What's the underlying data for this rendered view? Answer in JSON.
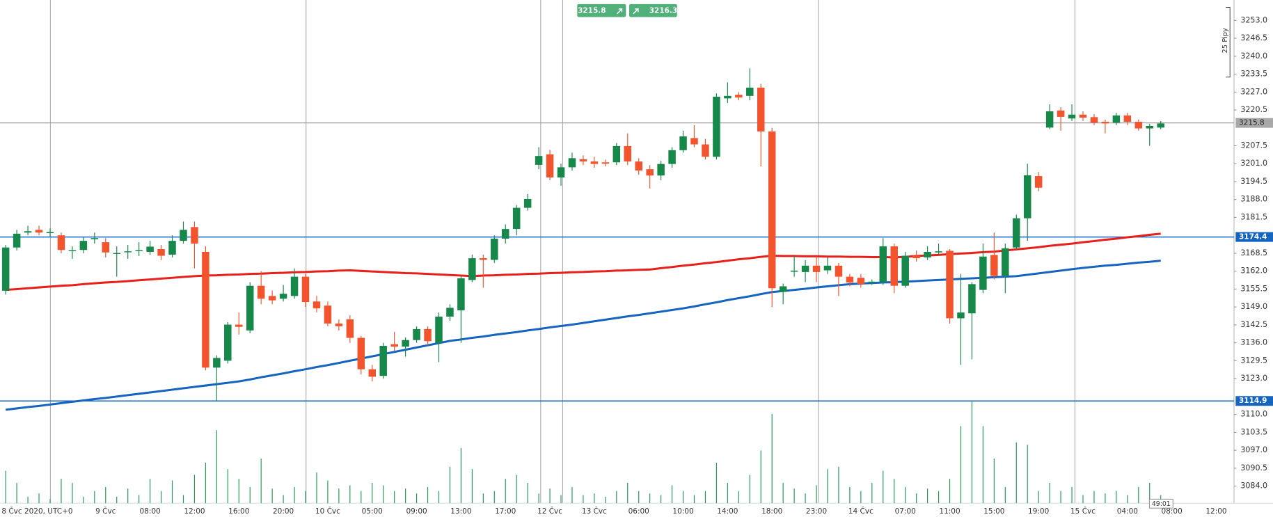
{
  "chart_data": {
    "type": "candlestick",
    "categories": [
      "8 Čvc 2020, UTC+0",
      null,
      null,
      null,
      null,
      null,
      null,
      null,
      null,
      "9 Čvc",
      null,
      null,
      null,
      "08:00",
      null,
      null,
      null,
      "12:00",
      null,
      null,
      null,
      "16:00",
      null,
      null,
      null,
      "20:00",
      null,
      null,
      null,
      "10 Čvc",
      null,
      null,
      null,
      "05:00",
      null,
      null,
      null,
      "09:00",
      null,
      null,
      null,
      "13:00",
      null,
      null,
      null,
      "17:00",
      null,
      null,
      null,
      "12 Čvc",
      null,
      null,
      null,
      "13 Čvc",
      null,
      null,
      null,
      "06:00",
      null,
      null,
      null,
      "10:00",
      null,
      null,
      null,
      "14:00",
      null,
      null,
      null,
      "18:00",
      null,
      null,
      null,
      "23:00",
      null,
      null,
      null,
      "14 Čvc",
      null,
      null,
      null,
      "07:00",
      null,
      null,
      null,
      "11:00",
      null,
      null,
      null,
      "15:00",
      null,
      null,
      null,
      "19:00",
      null,
      null,
      null,
      "15 Čvc",
      null,
      null,
      null,
      "04:00",
      null,
      null,
      null,
      "08:00",
      null,
      null,
      null,
      "12:00"
    ],
    "open": [
      3154.9,
      3170.6,
      3176.0,
      3177.0,
      3175.8,
      3175.0,
      3169.3,
      3169.7,
      3173.6,
      3172.5,
      3168.3,
      3168.9,
      3169.3,
      3169.0,
      3170.0,
      3168.0,
      3173.0,
      3178.0,
      3169.0,
      3127.0,
      3129.5,
      3142.6,
      3140.5,
      3156.7,
      3153.0,
      3152.0,
      3153.0,
      3160.0,
      3151.0,
      3149.5,
      3143.0,
      3144.5,
      3137.8,
      3126.4,
      3124.0,
      3135.5,
      3134.6,
      3137.0,
      3141.0,
      3136.0,
      3145.5,
      3147.8,
      3158.8,
      3166.7,
      3166.1,
      3173.8,
      3177.3,
      3185.0,
      3200.6,
      3204.4,
      3196.0,
      3199.7,
      3202.6,
      3201.8,
      3201.5,
      3201.5,
      3207.4,
      3201.8,
      3199.0,
      3196.7,
      3200.9,
      3205.9,
      3210.3,
      3208.0,
      3203.5,
      3224.7,
      3226.0,
      3225.6,
      3228.6,
      3212.7,
      3154.5,
      3161.8,
      3161.7,
      3164.0,
      3162.3,
      3164.0,
      3160.0,
      3159.6,
      3157.8,
      3158.0,
      3171.0,
      3156.7,
      3167.6,
      3167.0,
      3168.8,
      3169.4,
      3144.9,
      3146.7,
      3155.2,
      3167.9,
      3160.3,
      3170.6,
      3181.2,
      3196.5,
      3214.1,
      3220.3,
      3217.4,
      3218.8,
      3217.9,
      3216.2,
      3215.9,
      3218.5,
      3216.2,
      3213.8,
      3214.1,
      null,
      null,
      null,
      null,
      null
    ],
    "high": [
      3171.5,
      3177.0,
      3178.5,
      3178.5,
      3177.5,
      3176.0,
      3171.0,
      3174.5,
      3176.0,
      3174.0,
      3171.0,
      3171.5,
      3172.5,
      3173.0,
      3171.5,
      3175.0,
      3180.0,
      3180.0,
      3171.0,
      3131.5,
      3143.5,
      3147.0,
      3158.0,
      3162.0,
      3155.0,
      3157.0,
      3163.0,
      3161.0,
      3153.0,
      3151.0,
      3144.5,
      3146.0,
      3138.5,
      3128.0,
      3136.0,
      3140.0,
      3138.0,
      3142.0,
      3142.0,
      3147.0,
      3150.0,
      3160.5,
      3168.0,
      3168.0,
      3175.0,
      3179.0,
      3186.0,
      3190.0,
      3207.0,
      3206.0,
      3201.0,
      3205.0,
      3204.0,
      3203.5,
      3202.5,
      3208.5,
      3212.0,
      3203.0,
      3200.5,
      3202.0,
      3207.0,
      3213.0,
      3215.0,
      3210.0,
      3226.5,
      3230.5,
      3227.0,
      3235.6,
      3230.0,
      3214.0,
      3157.5,
      3167.5,
      3166.0,
      3167.0,
      3167.0,
      3165.0,
      3161.0,
      3161.0,
      3159.0,
      3174.0,
      3172.0,
      3169.0,
      3169.5,
      3171.0,
      3172.0,
      3170.0,
      3161.0,
      3158.0,
      3172.0,
      3176.0,
      3172.0,
      3182.5,
      3201.0,
      3198.0,
      3222.5,
      3221.5,
      3222.5,
      3220.0,
      3219.0,
      3217.0,
      3219.5,
      3219.5,
      3217.0,
      3215.5,
      3216.5,
      null,
      null,
      null,
      null,
      null
    ],
    "low": [
      3153.5,
      3169.5,
      3175.0,
      3175.0,
      3174.5,
      3168.5,
      3166.5,
      3168.5,
      3172.0,
      3167.0,
      3160.0,
      3166.5,
      3167.5,
      3168.0,
      3166.0,
      3167.0,
      3172.0,
      3163.0,
      3126.0,
      3115.0,
      3128.5,
      3139.0,
      3139.5,
      3150.0,
      3150.0,
      3151.0,
      3152.0,
      3149.0,
      3147.0,
      3142.0,
      3140.5,
      3136.0,
      3124.5,
      3122.0,
      3123.0,
      3133.0,
      3131.0,
      3136.0,
      3135.0,
      3129.0,
      3144.0,
      3136.0,
      3158.0,
      3156.0,
      3165.0,
      3172.0,
      3175.0,
      3184.0,
      3199.0,
      3195.0,
      3193.0,
      3198.5,
      3200.5,
      3199.5,
      3200.0,
      3200.5,
      3200.5,
      3197.0,
      3192.0,
      3195.0,
      3199.5,
      3205.0,
      3207.0,
      3202.5,
      3202.5,
      3223.0,
      3224.0,
      3224.0,
      3200.0,
      3149.0,
      3150.0,
      3160.0,
      3158.0,
      3158.0,
      3161.0,
      3153.0,
      3156.5,
      3156.0,
      3157.0,
      3157.0,
      3154.0,
      3156.0,
      3165.5,
      3166.0,
      3168.0,
      3143.0,
      3128.0,
      3130.0,
      3154.0,
      3159.0,
      3154.0,
      3169.5,
      3173.0,
      3191.0,
      3213.5,
      3213.0,
      3216.5,
      3216.5,
      3215.0,
      3212.0,
      3215.0,
      3215.0,
      3213.0,
      3207.5,
      3213.5,
      null,
      null,
      null,
      null,
      null
    ],
    "close": [
      3170.6,
      3175.6,
      3176.5,
      3176.0,
      3176.2,
      3169.7,
      3169.6,
      3173.0,
      3174.0,
      3168.8,
      3168.6,
      3169.2,
      3169.6,
      3170.9,
      3167.6,
      3173.0,
      3177.0,
      3172.0,
      3127.0,
      3130.5,
      3142.6,
      3141.8,
      3156.7,
      3152.0,
      3151.4,
      3153.8,
      3160.0,
      3150.8,
      3148.5,
      3143.0,
      3142.0,
      3137.8,
      3126.4,
      3123.7,
      3134.9,
      3134.6,
      3137.0,
      3141.0,
      3136.6,
      3145.5,
      3148.7,
      3159.4,
      3166.7,
      3166.1,
      3173.8,
      3177.3,
      3185.0,
      3188.2,
      3203.8,
      3196.0,
      3199.7,
      3203.0,
      3201.8,
      3200.9,
      3201.0,
      3207.4,
      3201.8,
      3198.5,
      3196.7,
      3200.9,
      3205.9,
      3210.9,
      3208.0,
      3203.5,
      3225.3,
      3225.6,
      3225.0,
      3228.6,
      3212.7,
      3155.8,
      3156.5,
      3162.2,
      3164.0,
      3161.7,
      3164.0,
      3160.0,
      3157.9,
      3157.3,
      3158.2,
      3171.0,
      3156.7,
      3167.6,
      3166.7,
      3169.0,
      3169.2,
      3144.9,
      3147.0,
      3157.3,
      3167.3,
      3160.3,
      3170.3,
      3181.2,
      3196.8,
      3192.3,
      3220.0,
      3218.0,
      3218.8,
      3217.7,
      3215.9,
      3215.6,
      3218.5,
      3216.2,
      3213.8,
      3214.7,
      3215.6,
      null,
      null,
      null,
      null,
      null
    ],
    "volume": [
      40,
      25,
      8,
      12,
      5,
      30,
      25,
      8,
      15,
      20,
      8,
      18,
      10,
      30,
      15,
      28,
      10,
      35,
      50,
      90,
      42,
      30,
      20,
      55,
      18,
      10,
      20,
      15,
      38,
      28,
      18,
      22,
      15,
      25,
      22,
      15,
      18,
      12,
      20,
      15,
      45,
      68,
      42,
      12,
      15,
      30,
      35,
      25,
      12,
      18,
      10,
      20,
      10,
      12,
      8,
      15,
      25,
      15,
      12,
      10,
      22,
      15,
      10,
      15,
      50,
      25,
      15,
      35,
      65,
      110,
      25,
      18,
      12,
      22,
      42,
      45,
      20,
      15,
      25,
      40,
      30,
      20,
      12,
      18,
      15,
      30,
      95,
      125,
      95,
      55,
      20,
      75,
      72,
      15,
      25,
      15,
      20,
      10,
      15,
      12,
      15,
      10,
      20,
      25,
      10,
      null,
      null,
      null,
      null,
      null
    ],
    "up_color": "#16884a",
    "down_color": "#f2542d",
    "volume_color": "#1e9a55",
    "series": [
      {
        "color": "#e8201c",
        "values": [
          3155.2,
          3155.5,
          3155.8,
          3156.1,
          3156.4,
          3156.7,
          3156.9,
          3157.3,
          3157.6,
          3157.9,
          3158.1,
          3158.4,
          3158.7,
          3159.0,
          3159.3,
          3159.6,
          3159.9,
          3160.2,
          3160.4,
          3160.5,
          3160.7,
          3160.8,
          3161.0,
          3161.1,
          3161.3,
          3161.4,
          3161.6,
          3161.7,
          3161.9,
          3162.0,
          3162.2,
          3162.3,
          3162.1,
          3161.9,
          3161.7,
          3161.5,
          3161.3,
          3161.2,
          3161.0,
          3160.8,
          3160.6,
          3160.4,
          3160.2,
          3160.4,
          3160.5,
          3160.7,
          3160.8,
          3161.0,
          3161.1,
          3161.3,
          3161.4,
          3161.6,
          3161.7,
          3161.9,
          3162.0,
          3162.2,
          3162.3,
          3162.5,
          3162.6,
          3163.1,
          3163.5,
          3164.0,
          3164.4,
          3164.9,
          3165.3,
          3165.8,
          3166.3,
          3166.7,
          3167.2,
          3167.6,
          3167.5,
          3167.5,
          3167.4,
          3167.4,
          3167.3,
          3167.3,
          3167.2,
          3167.2,
          3167.1,
          3167.1,
          3167.0,
          3167.2,
          3167.5,
          3167.7,
          3167.9,
          3168.2,
          3168.4,
          3168.6,
          3168.9,
          3169.1,
          3169.5,
          3169.9,
          3170.3,
          3170.7,
          3171.2,
          3171.6,
          3172.0,
          3172.5,
          3172.9,
          3173.4,
          3173.8,
          3174.3,
          3174.7,
          3175.2,
          3175.6,
          null,
          null,
          null,
          null,
          null
        ]
      },
      {
        "color": "#1565c0",
        "values": [
          3111.7,
          3112.2,
          3112.7,
          3113.1,
          3113.6,
          3114.1,
          3114.6,
          3115.1,
          3115.6,
          3116.0,
          3116.5,
          3117.0,
          3117.5,
          3118.0,
          3118.5,
          3119.0,
          3119.5,
          3120.0,
          3120.5,
          3121.0,
          3121.5,
          3122.0,
          3122.7,
          3123.5,
          3124.2,
          3124.9,
          3125.7,
          3126.4,
          3127.2,
          3127.9,
          3128.7,
          3129.5,
          3130.3,
          3131.1,
          3131.9,
          3132.7,
          3133.5,
          3134.3,
          3135.1,
          3135.9,
          3136.7,
          3137.2,
          3137.8,
          3138.3,
          3138.9,
          3139.4,
          3139.9,
          3140.5,
          3141.0,
          3141.6,
          3142.1,
          3142.6,
          3143.2,
          3143.8,
          3144.4,
          3145.0,
          3145.6,
          3146.1,
          3146.7,
          3147.3,
          3147.9,
          3148.5,
          3149.2,
          3150.0,
          3150.7,
          3151.5,
          3152.2,
          3152.9,
          3153.7,
          3154.4,
          3154.8,
          3155.2,
          3155.6,
          3156.1,
          3156.5,
          3156.9,
          3157.3,
          3157.5,
          3157.7,
          3157.9,
          3158.0,
          3158.2,
          3158.4,
          3158.6,
          3158.8,
          3159.0,
          3159.2,
          3159.4,
          3159.6,
          3159.8,
          3160.0,
          3160.2,
          3160.7,
          3161.2,
          3161.7,
          3162.2,
          3162.7,
          3163.2,
          3163.6,
          3164.0,
          3164.3,
          3164.7,
          3165.1,
          3165.4,
          3165.8,
          null,
          null,
          null,
          null,
          null
        ]
      }
    ],
    "hlines": [
      {
        "value": 3174.4,
        "color": "#1565c0"
      },
      {
        "value": 3114.9,
        "color": "#1565c0"
      }
    ],
    "price_line": 3215.8,
    "bid": 3215.8,
    "ask": 3216.3,
    "pip_label": "25 Pipy",
    "countdown": "49:01",
    "ylim": [
      3077.8,
      3260.4
    ],
    "yticks": [
      {
        "value": 3253,
        "label": "3253.0"
      },
      {
        "value": 3246.5,
        "label": "3246.5"
      },
      {
        "value": 3240,
        "label": "3240.0"
      },
      {
        "value": 3233.5,
        "label": "3233.5"
      },
      {
        "value": 3227,
        "label": "3227.0"
      },
      {
        "value": 3220.5,
        "label": "3220.5"
      },
      {
        "value": 3207.5,
        "label": "3207.5"
      },
      {
        "value": 3201,
        "label": "3201.0"
      },
      {
        "value": 3194.5,
        "label": "3194.5"
      },
      {
        "value": 3188,
        "label": "3188.0"
      },
      {
        "value": 3181.5,
        "label": "3181.5"
      },
      {
        "value": 3168.5,
        "label": "3168.5"
      },
      {
        "value": 3162,
        "label": "3162.0"
      },
      {
        "value": 3155.5,
        "label": "3155.5"
      },
      {
        "value": 3149,
        "label": "3149.0"
      },
      {
        "value": 3142.5,
        "label": "3142.5"
      },
      {
        "value": 3136,
        "label": "3136.0"
      },
      {
        "value": 3129.5,
        "label": "3129.5"
      },
      {
        "value": 3123,
        "label": "3123.0"
      },
      {
        "value": 3110,
        "label": "3110.0"
      },
      {
        "value": 3103.5,
        "label": "3103.5"
      },
      {
        "value": 3097,
        "label": "3097.0"
      },
      {
        "value": 3090.5,
        "label": "3090.5"
      },
      {
        "value": 3084,
        "label": "3084.0"
      }
    ]
  }
}
